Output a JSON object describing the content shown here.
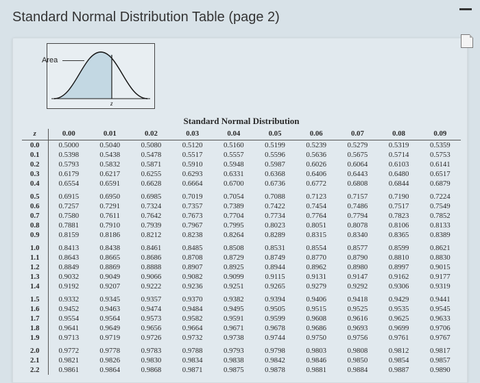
{
  "title": "Standard Normal Distribution Table (page 2)",
  "table_title": "Standard Normal Distribution",
  "area_label": "Area",
  "z_label": "z",
  "columns": [
    "0.00",
    "0.01",
    "0.02",
    "0.03",
    "0.04",
    "0.05",
    "0.06",
    "0.07",
    "0.08",
    "0.09"
  ],
  "groups": [
    {
      "rows": [
        {
          "z": "0.0",
          "v": [
            "0.5000",
            "0.5040",
            "0.5080",
            "0.5120",
            "0.5160",
            "0.5199",
            "0.5239",
            "0.5279",
            "0.5319",
            "0.5359"
          ]
        },
        {
          "z": "0.1",
          "v": [
            "0.5398",
            "0.5438",
            "0.5478",
            "0.5517",
            "0.5557",
            "0.5596",
            "0.5636",
            "0.5675",
            "0.5714",
            "0.5753"
          ]
        },
        {
          "z": "0.2",
          "v": [
            "0.5793",
            "0.5832",
            "0.5871",
            "0.5910",
            "0.5948",
            "0.5987",
            "0.6026",
            "0.6064",
            "0.6103",
            "0.6141"
          ]
        },
        {
          "z": "0.3",
          "v": [
            "0.6179",
            "0.6217",
            "0.6255",
            "0.6293",
            "0.6331",
            "0.6368",
            "0.6406",
            "0.6443",
            "0.6480",
            "0.6517"
          ]
        },
        {
          "z": "0.4",
          "v": [
            "0.6554",
            "0.6591",
            "0.6628",
            "0.6664",
            "0.6700",
            "0.6736",
            "0.6772",
            "0.6808",
            "0.6844",
            "0.6879"
          ]
        }
      ]
    },
    {
      "rows": [
        {
          "z": "0.5",
          "v": [
            "0.6915",
            "0.6950",
            "0.6985",
            "0.7019",
            "0.7054",
            "0.7088",
            "0.7123",
            "0.7157",
            "0.7190",
            "0.7224"
          ]
        },
        {
          "z": "0.6",
          "v": [
            "0.7257",
            "0.7291",
            "0.7324",
            "0.7357",
            "0.7389",
            "0.7422",
            "0.7454",
            "0.7486",
            "0.7517",
            "0.7549"
          ]
        },
        {
          "z": "0.7",
          "v": [
            "0.7580",
            "0.7611",
            "0.7642",
            "0.7673",
            "0.7704",
            "0.7734",
            "0.7764",
            "0.7794",
            "0.7823",
            "0.7852"
          ]
        },
        {
          "z": "0.8",
          "v": [
            "0.7881",
            "0.7910",
            "0.7939",
            "0.7967",
            "0.7995",
            "0.8023",
            "0.8051",
            "0.8078",
            "0.8106",
            "0.8133"
          ]
        },
        {
          "z": "0.9",
          "v": [
            "0.8159",
            "0.8186",
            "0.8212",
            "0.8238",
            "0.8264",
            "0.8289",
            "0.8315",
            "0.8340",
            "0.8365",
            "0.8389"
          ]
        }
      ]
    },
    {
      "rows": [
        {
          "z": "1.0",
          "v": [
            "0.8413",
            "0.8438",
            "0.8461",
            "0.8485",
            "0.8508",
            "0.8531",
            "0.8554",
            "0.8577",
            "0.8599",
            "0.8621"
          ]
        },
        {
          "z": "1.1",
          "v": [
            "0.8643",
            "0.8665",
            "0.8686",
            "0.8708",
            "0.8729",
            "0.8749",
            "0.8770",
            "0.8790",
            "0.8810",
            "0.8830"
          ]
        },
        {
          "z": "1.2",
          "v": [
            "0.8849",
            "0.8869",
            "0.8888",
            "0.8907",
            "0.8925",
            "0.8944",
            "0.8962",
            "0.8980",
            "0.8997",
            "0.9015"
          ]
        },
        {
          "z": "1.3",
          "v": [
            "0.9032",
            "0.9049",
            "0.9066",
            "0.9082",
            "0.9099",
            "0.9115",
            "0.9131",
            "0.9147",
            "0.9162",
            "0.9177"
          ]
        },
        {
          "z": "1.4",
          "v": [
            "0.9192",
            "0.9207",
            "0.9222",
            "0.9236",
            "0.9251",
            "0.9265",
            "0.9279",
            "0.9292",
            "0.9306",
            "0.9319"
          ]
        }
      ]
    },
    {
      "rows": [
        {
          "z": "1.5",
          "v": [
            "0.9332",
            "0.9345",
            "0.9357",
            "0.9370",
            "0.9382",
            "0.9394",
            "0.9406",
            "0.9418",
            "0.9429",
            "0.9441"
          ]
        },
        {
          "z": "1.6",
          "v": [
            "0.9452",
            "0.9463",
            "0.9474",
            "0.9484",
            "0.9495",
            "0.9505",
            "0.9515",
            "0.9525",
            "0.9535",
            "0.9545"
          ]
        },
        {
          "z": "1.7",
          "v": [
            "0.9554",
            "0.9564",
            "0.9573",
            "0.9582",
            "0.9591",
            "0.9599",
            "0.9608",
            "0.9616",
            "0.9625",
            "0.9633"
          ]
        },
        {
          "z": "1.8",
          "v": [
            "0.9641",
            "0.9649",
            "0.9656",
            "0.9664",
            "0.9671",
            "0.9678",
            "0.9686",
            "0.9693",
            "0.9699",
            "0.9706"
          ]
        },
        {
          "z": "1.9",
          "v": [
            "0.9713",
            "0.9719",
            "0.9726",
            "0.9732",
            "0.9738",
            "0.9744",
            "0.9750",
            "0.9756",
            "0.9761",
            "0.9767"
          ]
        }
      ]
    },
    {
      "rows": [
        {
          "z": "2.0",
          "v": [
            "0.9772",
            "0.9778",
            "0.9783",
            "0.9788",
            "0.9793",
            "0.9798",
            "0.9803",
            "0.9808",
            "0.9812",
            "0.9817"
          ]
        },
        {
          "z": "2.1",
          "v": [
            "0.9821",
            "0.9826",
            "0.9830",
            "0.9834",
            "0.9838",
            "0.9842",
            "0.9846",
            "0.9850",
            "0.9854",
            "0.9857"
          ]
        },
        {
          "z": "2.2",
          "v": [
            "0.9861",
            "0.9864",
            "0.9868",
            "0.9871",
            "0.9875",
            "0.9878",
            "0.9881",
            "0.9884",
            "0.9887",
            "0.9890"
          ]
        }
      ]
    }
  ],
  "curve": {
    "fill_color": "#bcd4e0",
    "stroke_color": "#1a1a1a",
    "axis_color": "#1a1a1a"
  }
}
